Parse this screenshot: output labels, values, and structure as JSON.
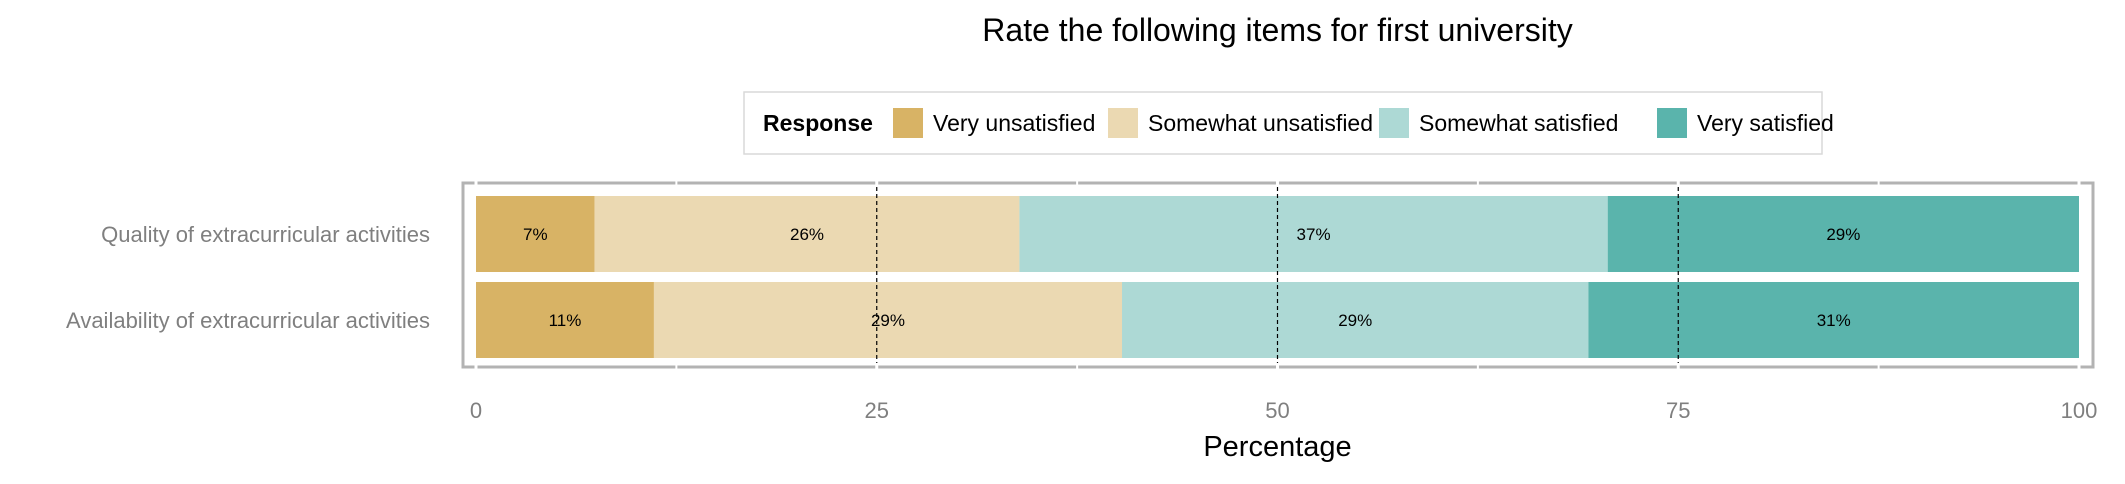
{
  "chart_data": {
    "type": "bar",
    "orientation": "horizontal",
    "stacked": true,
    "title": "Rate the following items for first university",
    "xlabel": "Percentage",
    "ylabel": "",
    "xlim": [
      0,
      100
    ],
    "x_ticks": [
      0,
      25,
      50,
      75,
      100
    ],
    "reference_lines": [
      25,
      50,
      75
    ],
    "grid": true,
    "legend": {
      "title": "Response",
      "placement": "top"
    },
    "categories": [
      "Quality of extracurricular activities",
      "Availability of extracurricular activities"
    ],
    "series": [
      {
        "name": "Very unsatisfied",
        "color": "#D8B365",
        "values": [
          7.4,
          11.1
        ],
        "labels": [
          "7%",
          "11%"
        ]
      },
      {
        "name": "Somewhat unsatisfied",
        "color": "#EBD9B2",
        "values": [
          26.5,
          29.2
        ],
        "labels": [
          "26%",
          "29%"
        ]
      },
      {
        "name": "Somewhat satisfied",
        "color": "#ADD9D5",
        "values": [
          36.7,
          29.1
        ],
        "labels": [
          "37%",
          "29%"
        ]
      },
      {
        "name": "Very satisfied",
        "color": "#5AB4AC",
        "values": [
          29.4,
          30.6
        ],
        "labels": [
          "29%",
          "31%"
        ]
      }
    ]
  }
}
